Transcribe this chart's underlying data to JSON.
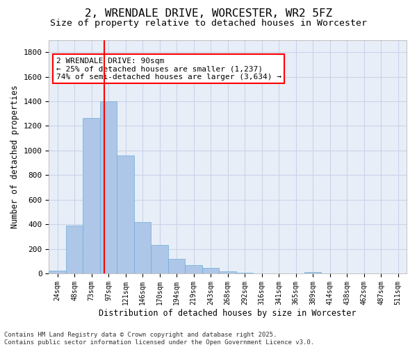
{
  "title": "2, WRENDALE DRIVE, WORCESTER, WR2 5FZ",
  "subtitle": "Size of property relative to detached houses in Worcester",
  "xlabel": "Distribution of detached houses by size in Worcester",
  "ylabel": "Number of detached properties",
  "bar_values": [
    25,
    390,
    1265,
    1400,
    960,
    415,
    230,
    120,
    65,
    45,
    15,
    5,
    0,
    0,
    0,
    10,
    0,
    0,
    0,
    0,
    0
  ],
  "bar_labels": [
    "24sqm",
    "48sqm",
    "73sqm",
    "97sqm",
    "121sqm",
    "146sqm",
    "170sqm",
    "194sqm",
    "219sqm",
    "243sqm",
    "268sqm",
    "292sqm",
    "316sqm",
    "341sqm",
    "365sqm",
    "389sqm",
    "414sqm",
    "438sqm",
    "462sqm",
    "487sqm",
    "511sqm"
  ],
  "bar_color": "#aec6e8",
  "bar_edge_color": "#6aaed6",
  "bar_edge_width": 0.5,
  "grid_color": "#c8d4e8",
  "bg_color": "#e8eef8",
  "vline_x": 2.75,
  "vline_color": "red",
  "annotation_text": "2 WRENDALE DRIVE: 90sqm\n← 25% of detached houses are smaller (1,237)\n74% of semi-detached houses are larger (3,634) →",
  "annotation_box_color": "red",
  "annotation_fontsize": 8.0,
  "ylim": [
    0,
    1900
  ],
  "yticks": [
    0,
    200,
    400,
    600,
    800,
    1000,
    1200,
    1400,
    1600,
    1800
  ],
  "title_fontsize": 11.5,
  "subtitle_fontsize": 9.5,
  "xlabel_fontsize": 8.5,
  "ylabel_fontsize": 8.5,
  "footer_text": "Contains HM Land Registry data © Crown copyright and database right 2025.\nContains public sector information licensed under the Open Government Licence v3.0.",
  "footer_fontsize": 6.5
}
